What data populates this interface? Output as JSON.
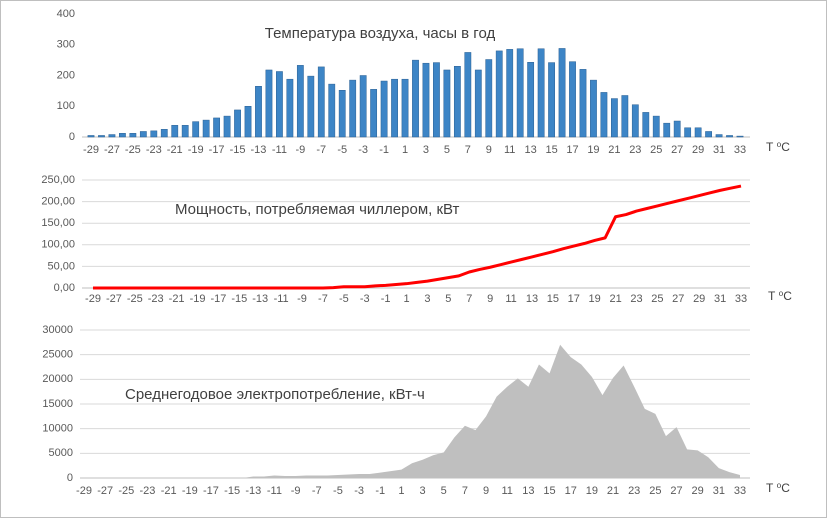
{
  "chart_data": [
    {
      "type": "bar",
      "title": "Температура воздуха, часы в год",
      "x_label": "T ⁰C",
      "color": "#3d85c6",
      "grid": false,
      "categories": [
        -29,
        null,
        -27,
        null,
        -25,
        null,
        -23,
        null,
        -21,
        null,
        -19,
        null,
        -17,
        null,
        -15,
        null,
        -13,
        null,
        -11,
        null,
        -9,
        null,
        -7,
        null,
        -5,
        null,
        -3,
        null,
        -1,
        null,
        1,
        null,
        3,
        null,
        5,
        null,
        7,
        null,
        9,
        null,
        11,
        null,
        13,
        null,
        15,
        null,
        17,
        null,
        19,
        null,
        21,
        null,
        23,
        null,
        25,
        null,
        27,
        null,
        29,
        null,
        31,
        null,
        33
      ],
      "values": [
        5,
        5,
        8,
        12,
        12,
        18,
        20,
        25,
        38,
        38,
        50,
        55,
        62,
        68,
        88,
        100,
        165,
        218,
        213,
        188,
        233,
        198,
        228,
        172,
        152,
        185,
        200,
        155,
        182,
        188,
        188,
        250,
        240,
        242,
        218,
        230,
        275,
        218,
        252,
        280,
        285,
        287,
        243,
        287,
        242,
        288,
        245,
        220,
        185,
        145,
        125,
        135,
        105,
        80,
        68,
        45,
        52,
        30,
        30,
        18,
        8,
        5,
        3
      ],
      "ylim": [
        0,
        400
      ],
      "yticks": [
        0,
        100,
        200,
        300,
        400
      ]
    },
    {
      "type": "line",
      "title": "Мощность, потребляемая чиллером, кВт",
      "x_label": "T ⁰C",
      "color": "#ff0000",
      "grid": true,
      "categories": [
        -29,
        null,
        -27,
        null,
        -25,
        null,
        -23,
        null,
        -21,
        null,
        -19,
        null,
        -17,
        null,
        -15,
        null,
        -13,
        null,
        -11,
        null,
        -9,
        null,
        -7,
        null,
        -5,
        null,
        -3,
        null,
        -1,
        null,
        1,
        null,
        3,
        null,
        5,
        null,
        7,
        null,
        9,
        null,
        11,
        null,
        13,
        null,
        15,
        null,
        17,
        null,
        19,
        null,
        21,
        null,
        23,
        null,
        25,
        null,
        27,
        null,
        29,
        null,
        31,
        null,
        33
      ],
      "values": [
        0,
        0,
        0,
        0,
        0,
        0,
        0,
        0,
        0,
        0,
        0,
        0,
        0,
        0,
        0,
        0,
        0,
        0,
        0,
        0,
        0,
        0,
        0,
        1,
        3,
        3,
        3,
        5,
        6,
        8,
        10,
        13,
        16,
        20,
        24,
        28,
        37,
        43,
        48,
        54,
        60,
        66,
        72,
        78,
        84,
        91,
        97,
        103,
        110,
        116,
        165,
        170,
        178,
        184,
        190,
        196,
        202,
        208,
        214,
        220,
        226,
        231,
        236
      ],
      "ylim": [
        0,
        250
      ],
      "yticks": [
        {
          "value": 0,
          "label": "0,00"
        },
        {
          "value": 50,
          "label": "50,00"
        },
        {
          "value": 100,
          "label": "100,00"
        },
        {
          "value": 150,
          "label": "150,00"
        },
        {
          "value": 200,
          "label": "200,00"
        },
        {
          "value": 250,
          "label": "250,00"
        }
      ]
    },
    {
      "type": "area",
      "title": "Среднегодовое электропотребление, кВт-ч",
      "x_label": "T ⁰C",
      "color": "#bfbfbf",
      "grid": true,
      "categories": [
        -29,
        null,
        -27,
        null,
        -25,
        null,
        -23,
        null,
        -21,
        null,
        -19,
        null,
        -17,
        null,
        -15,
        null,
        -13,
        null,
        -11,
        null,
        -9,
        null,
        -7,
        null,
        -5,
        null,
        -3,
        null,
        -1,
        null,
        1,
        null,
        3,
        null,
        5,
        null,
        7,
        null,
        9,
        null,
        11,
        null,
        13,
        null,
        15,
        null,
        17,
        null,
        19,
        null,
        21,
        null,
        23,
        null,
        25,
        null,
        27,
        null,
        29,
        null,
        31,
        null,
        33
      ],
      "values": [
        0,
        0,
        0,
        0,
        0,
        0,
        0,
        0,
        0,
        0,
        0,
        0,
        0,
        0,
        0,
        0,
        300,
        300,
        500,
        400,
        400,
        500,
        500,
        500,
        600,
        700,
        800,
        800,
        1100,
        1400,
        1700,
        3000,
        3700,
        4600,
        5200,
        8200,
        10600,
        9700,
        12500,
        16500,
        18500,
        20200,
        18500,
        23000,
        21200,
        27000,
        24500,
        23000,
        20500,
        16800,
        20300,
        22800,
        18500,
        14000,
        13000,
        8500,
        10300,
        5800,
        5600,
        4200,
        2000,
        1200,
        600
      ],
      "ylim": [
        0,
        30000
      ],
      "yticks": [
        0,
        5000,
        10000,
        15000,
        20000,
        25000,
        30000
      ]
    }
  ]
}
